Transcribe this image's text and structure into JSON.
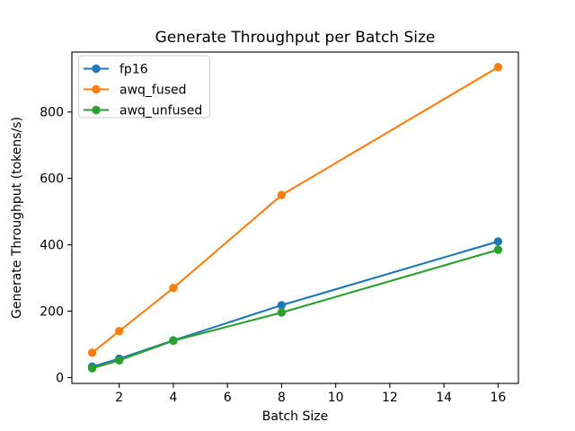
{
  "figure": {
    "background": "#ffffff"
  },
  "chart_data": {
    "type": "line",
    "title": "Generate Throughput per Batch Size",
    "xlabel": "Batch Size",
    "ylabel": "Generate Throughput (tokens/s)",
    "x": [
      1,
      2,
      4,
      8,
      16
    ],
    "series": [
      {
        "name": "fp16",
        "color": "#1f77b4",
        "values": [
          33,
          57,
          112,
          218,
          410
        ]
      },
      {
        "name": "awq_fused",
        "color": "#ff7f0e",
        "values": [
          75,
          140,
          270,
          550,
          935
        ]
      },
      {
        "name": "awq_unfused",
        "color": "#2ca02c",
        "values": [
          28,
          52,
          111,
          196,
          385
        ]
      }
    ],
    "xticks": [
      2,
      4,
      6,
      8,
      10,
      12,
      14,
      16
    ],
    "yticks": [
      0,
      200,
      400,
      600,
      800
    ],
    "xlim": [
      0.25,
      16.75
    ],
    "ylim": [
      -17.5,
      980.5
    ],
    "grid": false,
    "marker": "o",
    "legend": {
      "position": "upper left",
      "entries": [
        "fp16",
        "awq_fused",
        "awq_unfused"
      ]
    },
    "spine_color": "#000000",
    "legend_border_color": "#cccccc",
    "text_color": "#000000"
  }
}
